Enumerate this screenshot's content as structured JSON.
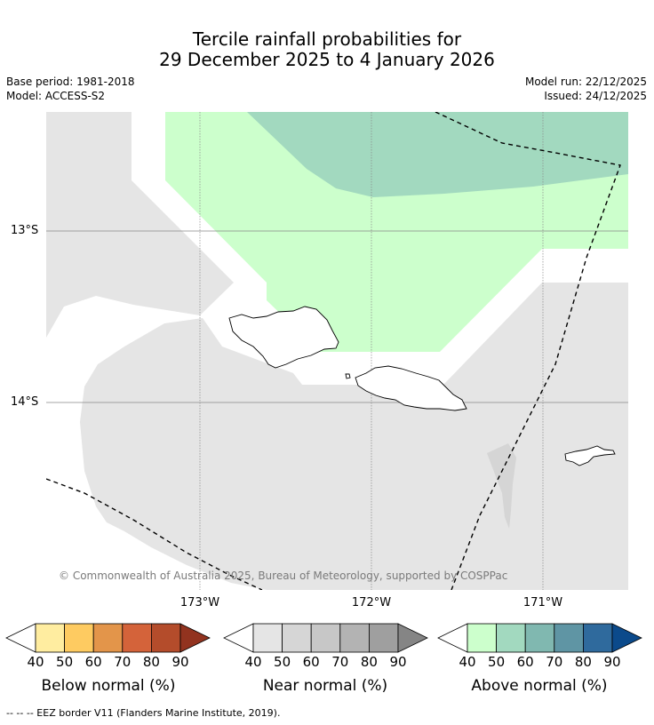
{
  "title": {
    "line1": "Tercile rainfall probabilities for",
    "line2": "29 December 2025 to 4 January 2026"
  },
  "meta": {
    "base_period": "Base period: 1981-2018",
    "model": "Model: ACCESS-S2",
    "model_run": "Model run: 22/12/2025",
    "issued": "Issued: 24/12/2025"
  },
  "map": {
    "latitudes": [
      "13°S",
      "14°S"
    ],
    "longitudes": [
      "173°W",
      "172°W",
      "171°W"
    ],
    "copyright": "© Commonwealth of Australia 2025, Bureau of Meteorology, supported by COSPPac",
    "features": [
      "Samoa (Savai'i)",
      "Samoa (Upolu)",
      "Tutuila (American Samoa)"
    ],
    "colors": {
      "ocean": "#ffffff",
      "near_normal_fill": "#e5e5e5",
      "above_40_50": "#ccffcc",
      "above_50_60": "#a2d9bf",
      "grid": "#888888"
    }
  },
  "colorbars": [
    {
      "label": "Below normal (%)",
      "ticks": [
        "40",
        "50",
        "60",
        "70",
        "80",
        "90"
      ],
      "colors": [
        "#ffeda0",
        "#fecb61",
        "#e3954a",
        "#d4633a",
        "#b44c2b",
        "#92331f"
      ]
    },
    {
      "label": "Near normal (%)",
      "ticks": [
        "40",
        "50",
        "60",
        "70",
        "80",
        "90"
      ],
      "colors": [
        "#e5e5e5",
        "#d6d6d6",
        "#c7c7c7",
        "#b3b3b3",
        "#9f9f9f",
        "#858585"
      ]
    },
    {
      "label": "Above normal (%)",
      "ticks": [
        "40",
        "50",
        "60",
        "70",
        "80",
        "90"
      ],
      "colors": [
        "#ccffcc",
        "#a2d9bf",
        "#80b8b0",
        "#5f95a4",
        "#2f6a9d",
        "#0b4a8b"
      ]
    }
  ],
  "footnote": "--  --  -- EEZ border V11 (Flanders Marine Institute, 2019)."
}
